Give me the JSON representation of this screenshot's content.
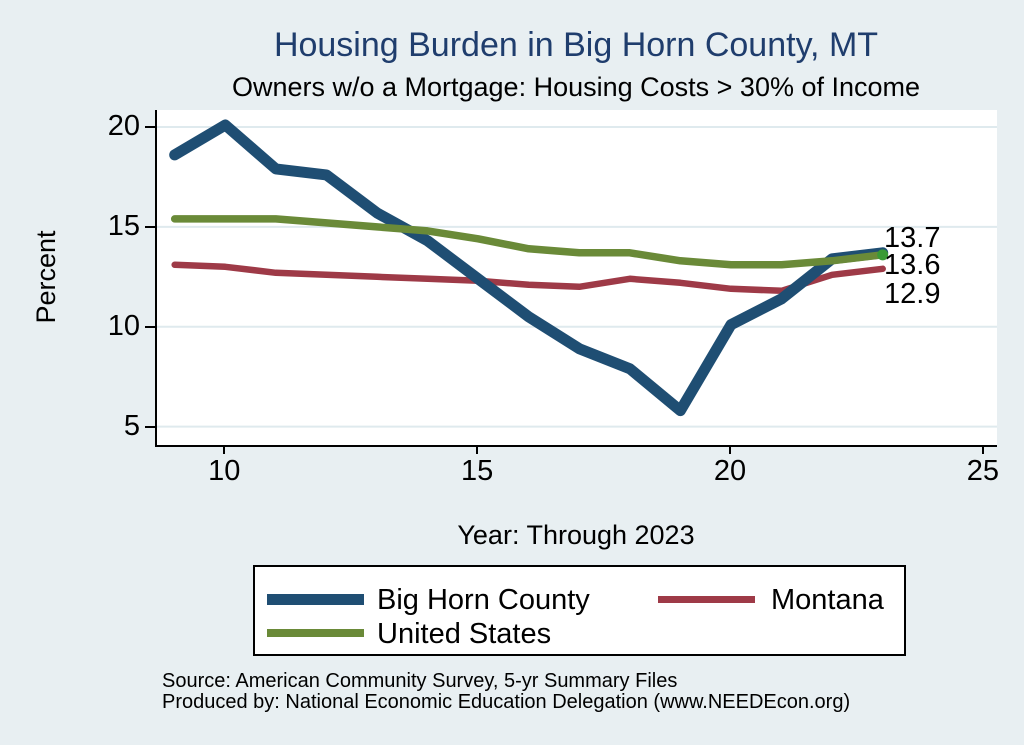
{
  "title": "Housing Burden in Big Horn County, MT",
  "subtitle": "Owners w/o a Mortgage: Housing Costs > 30% of Income",
  "x_axis_label": "Year: Through 2023",
  "y_axis_label": "Percent",
  "source_line1": "Source: American Community Survey, 5-yr Summary Files",
  "source_line2": "Produced by: National Economic Education Delegation (www.NEEDEcon.org)",
  "colors": {
    "navy": "#1f4e73",
    "maroon": "#9e3a47",
    "olive": "#6a8a38",
    "marker_green": "#3a9a35",
    "title_blue": "#1f3d6d",
    "grid": "#dfeaee",
    "background": "#e8eff2",
    "plot_background": "#ffffff",
    "axis": "#000000"
  },
  "chart_data": {
    "type": "line",
    "x": [
      9,
      10,
      11,
      12,
      13,
      14,
      15,
      16,
      17,
      18,
      19,
      20,
      21,
      22,
      23
    ],
    "series": [
      {
        "name": "Montana",
        "color_key": "maroon",
        "end_marker": false,
        "values": [
          13.1,
          13.0,
          12.7,
          12.6,
          12.5,
          12.4,
          12.3,
          12.1,
          12.0,
          12.4,
          12.2,
          11.9,
          11.8,
          12.6,
          12.9
        ]
      },
      {
        "name": "Big Horn County",
        "color_key": "navy",
        "end_marker": false,
        "values": [
          18.6,
          20.1,
          17.9,
          17.6,
          15.7,
          14.3,
          12.4,
          10.5,
          8.9,
          7.9,
          5.8,
          10.1,
          11.4,
          13.4,
          13.7
        ]
      },
      {
        "name": "United States",
        "color_key": "olive",
        "end_marker": true,
        "values": [
          15.4,
          15.4,
          15.4,
          15.2,
          15.0,
          14.8,
          14.4,
          13.9,
          13.7,
          13.7,
          13.3,
          13.1,
          13.1,
          13.3,
          13.6
        ]
      }
    ],
    "end_labels": [
      "13.7",
      "13.6",
      "12.9"
    ],
    "x_ticks": [
      10,
      15,
      20,
      25
    ],
    "y_ticks": [
      20,
      15,
      10,
      5
    ],
    "x_range": [
      8.65,
      25.26
    ],
    "y_range": [
      4.13,
      20.85
    ],
    "grid": true,
    "title": "Housing Burden in Big Horn County, MT",
    "xlabel": "Year: Through 2023",
    "ylabel": "Percent",
    "legend_position": "bottom"
  },
  "legend": {
    "items": [
      {
        "label": "Big Horn County",
        "color_key": "navy"
      },
      {
        "label": "Montana",
        "color_key": "maroon"
      },
      {
        "label": "United States",
        "color_key": "olive"
      }
    ]
  }
}
